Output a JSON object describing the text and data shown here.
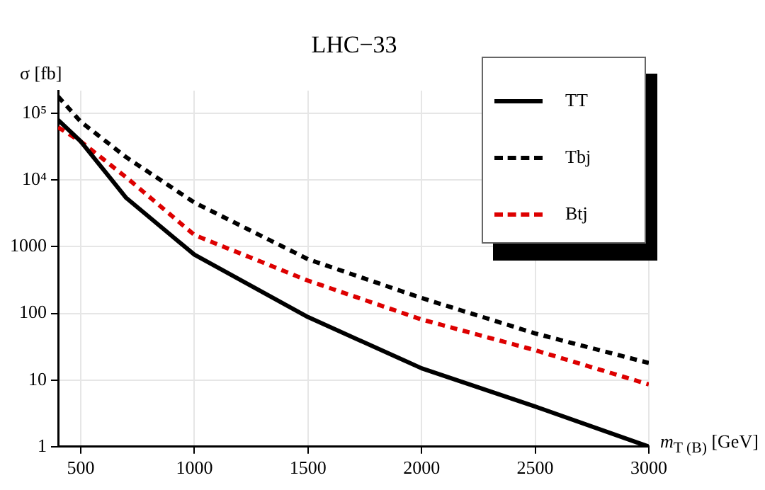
{
  "chart_data": {
    "type": "line",
    "title": "LHC−33",
    "xlabel": "m$_{T (B)}$ [GeV]",
    "ylabel": "σ [fb]",
    "log": "y",
    "grid": true,
    "legend": "top right",
    "marker": "none",
    "xlim": [
      400,
      3000
    ],
    "xticks": [
      500,
      1000,
      1500,
      2000,
      2500,
      3000
    ],
    "ylim": [
      1,
      220000
    ],
    "yticks": [
      1,
      10,
      100,
      1000,
      {
        "value": 10000,
        "label": "10⁴"
      },
      {
        "value": 100000,
        "label": "10⁵"
      }
    ],
    "x": [
      400,
      500,
      700,
      1000,
      1500,
      2000,
      2500,
      3000
    ],
    "series": [
      {
        "name": "TT",
        "color": "#000000",
        "line_style": "solid",
        "values": [
          80000,
          38000,
          5400,
          760,
          88,
          15,
          4,
          1
        ]
      },
      {
        "name": "Tbj",
        "color": "#000000",
        "line_style": "dotted",
        "values": [
          180000,
          75000,
          22000,
          4600,
          650,
          170,
          50,
          18
        ]
      },
      {
        "name": "Btj",
        "color": "#dd0000",
        "line_style": "dotted",
        "values": [
          62000,
          38000,
          11000,
          1500,
          310,
          81,
          28,
          8.6
        ]
      }
    ]
  }
}
